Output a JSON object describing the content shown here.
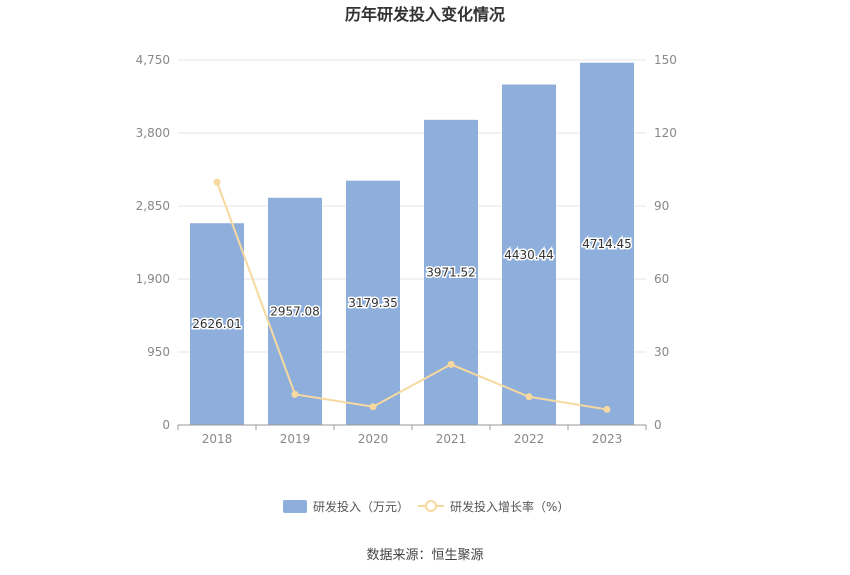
{
  "chart_data": {
    "type": "bar",
    "title": "历年研发投入变化情况",
    "categories": [
      "2018",
      "2019",
      "2020",
      "2021",
      "2022",
      "2023"
    ],
    "series": [
      {
        "name": "研发投入（万元）",
        "type": "bar",
        "axis": "left",
        "color": "#8eaedb",
        "values": [
          2626.01,
          2957.08,
          3179.35,
          3971.52,
          4430.44,
          4714.45
        ],
        "labels": [
          "2626.01",
          "2957.08",
          "3179.35",
          "3971.52",
          "4430.44",
          "4714.45"
        ]
      },
      {
        "name": "研发投入增长率（%）",
        "type": "line",
        "axis": "right",
        "color": "#f7d9a0",
        "values": [
          99.8,
          12.6,
          7.5,
          24.9,
          11.6,
          6.4
        ]
      }
    ],
    "y_left": {
      "min": 0,
      "max": 4750,
      "ticks": [
        "0",
        "950",
        "1,900",
        "2,850",
        "3,800",
        "4,750"
      ]
    },
    "y_right": {
      "min": 0,
      "max": 150,
      "ticks": [
        "0",
        "30",
        "60",
        "90",
        "120",
        "150"
      ]
    },
    "grid": true,
    "legend_position": "bottom",
    "source": "数据来源：恒生聚源"
  }
}
